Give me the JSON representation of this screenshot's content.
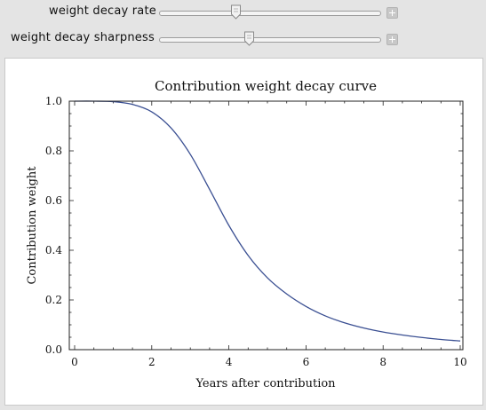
{
  "controls": {
    "decay_rate": {
      "label": "weight decay rate",
      "value": 0.35
    },
    "decay_sharpness": {
      "label": "weight decay sharpness",
      "value": 0.41
    }
  },
  "chart_data": {
    "type": "line",
    "title": "Contribution weight decay curve",
    "xlabel": "Years after contribution",
    "ylabel": "Contribution weight",
    "xlim": [
      0,
      10
    ],
    "ylim": [
      0,
      1.0
    ],
    "x_ticks": [
      "0",
      "2",
      "4",
      "6",
      "8",
      "10"
    ],
    "y_ticks": [
      "0.0",
      "0.2",
      "0.4",
      "0.6",
      "0.8",
      "1.0"
    ],
    "grid": false,
    "colors": {
      "line": "#3a4f92"
    },
    "series": [
      {
        "x": [
          0,
          0.5,
          1,
          1.5,
          2,
          2.5,
          3,
          3.5,
          4,
          4.5,
          5,
          5.5,
          6,
          6.5,
          7,
          7.5,
          8,
          8.5,
          9,
          9.5,
          10
        ],
        "y": [
          1.0,
          1.0,
          0.998,
          0.987,
          0.957,
          0.892,
          0.786,
          0.645,
          0.5,
          0.379,
          0.289,
          0.224,
          0.174,
          0.136,
          0.108,
          0.087,
          0.071,
          0.059,
          0.049,
          0.041,
          0.035
        ]
      }
    ]
  }
}
